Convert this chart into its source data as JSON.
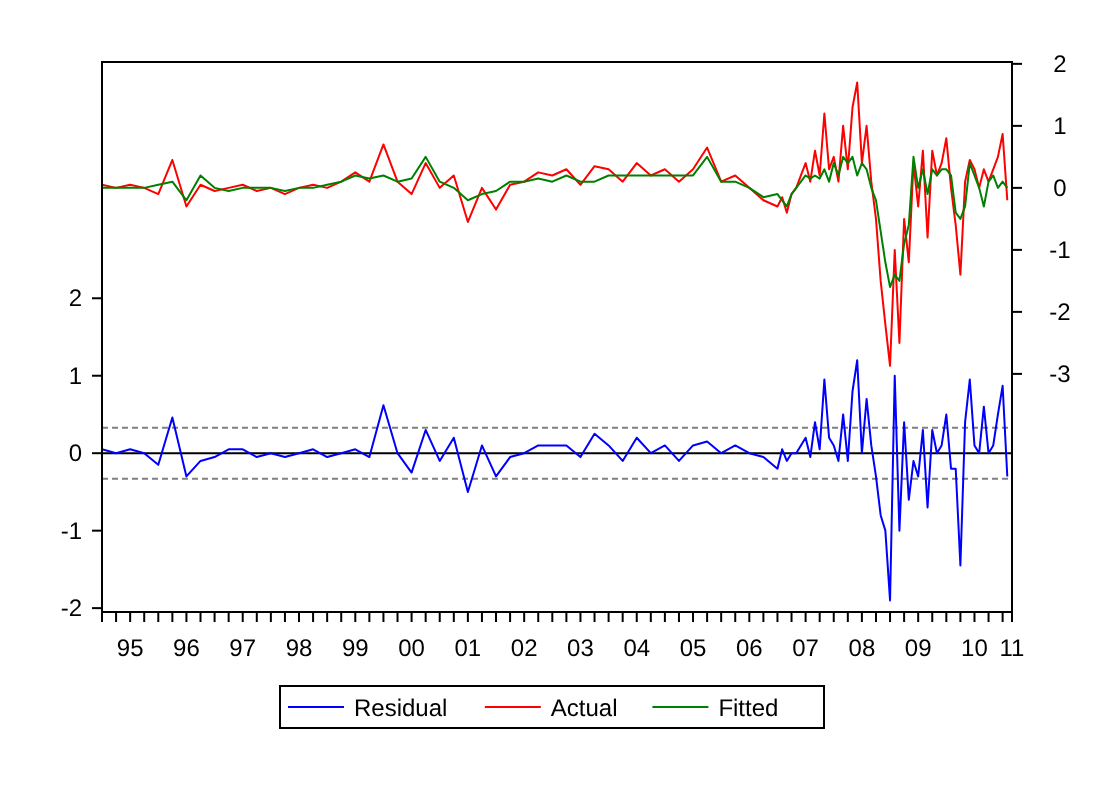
{
  "chart_data": {
    "type": "line",
    "legend": "bottom",
    "grid": false,
    "line_style": "solid",
    "xlim": [
      "1995-01",
      "2011-03"
    ],
    "xticks": [
      {
        "value": "1995-01",
        "label": null
      },
      {
        "value": "1995-04",
        "label": null
      },
      {
        "value": "1995-07",
        "label": "95"
      },
      {
        "value": "1995-10",
        "label": null
      },
      {
        "value": "1996-01",
        "label": null
      },
      {
        "value": "1996-04",
        "label": null
      },
      {
        "value": "1996-07",
        "label": "96"
      },
      {
        "value": "1996-10",
        "label": null
      },
      {
        "value": "1997-01",
        "label": null
      },
      {
        "value": "1997-04",
        "label": null
      },
      {
        "value": "1997-07",
        "label": "97"
      },
      {
        "value": "1997-10",
        "label": null
      },
      {
        "value": "1998-01",
        "label": null
      },
      {
        "value": "1998-04",
        "label": null
      },
      {
        "value": "1998-07",
        "label": "98"
      },
      {
        "value": "1998-10",
        "label": null
      },
      {
        "value": "1999-01",
        "label": null
      },
      {
        "value": "1999-04",
        "label": null
      },
      {
        "value": "1999-07",
        "label": "99"
      },
      {
        "value": "1999-10",
        "label": null
      },
      {
        "value": "2000-01",
        "label": null
      },
      {
        "value": "2000-04",
        "label": null
      },
      {
        "value": "2000-07",
        "label": "00"
      },
      {
        "value": "2000-10",
        "label": null
      },
      {
        "value": "2001-01",
        "label": null
      },
      {
        "value": "2001-04",
        "label": null
      },
      {
        "value": "2001-07",
        "label": "01"
      },
      {
        "value": "2001-10",
        "label": null
      },
      {
        "value": "2002-01",
        "label": null
      },
      {
        "value": "2002-04",
        "label": null
      },
      {
        "value": "2002-07",
        "label": "02"
      },
      {
        "value": "2002-10",
        "label": null
      },
      {
        "value": "2003-01",
        "label": null
      },
      {
        "value": "2003-04",
        "label": null
      },
      {
        "value": "2003-07",
        "label": "03"
      },
      {
        "value": "2003-10",
        "label": null
      },
      {
        "value": "2004-01",
        "label": null
      },
      {
        "value": "2004-04",
        "label": null
      },
      {
        "value": "2004-07",
        "label": "04"
      },
      {
        "value": "2004-10",
        "label": null
      },
      {
        "value": "2005-01",
        "label": null
      },
      {
        "value": "2005-04",
        "label": null
      },
      {
        "value": "2005-07",
        "label": "05"
      },
      {
        "value": "2005-10",
        "label": null
      },
      {
        "value": "2006-01",
        "label": null
      },
      {
        "value": "2006-04",
        "label": null
      },
      {
        "value": "2006-07",
        "label": "06"
      },
      {
        "value": "2006-10",
        "label": null
      },
      {
        "value": "2007-01",
        "label": null
      },
      {
        "value": "2007-04",
        "label": null
      },
      {
        "value": "2007-07",
        "label": "07"
      },
      {
        "value": "2007-10",
        "label": null
      },
      {
        "value": "2008-01",
        "label": null
      },
      {
        "value": "2008-04",
        "label": null
      },
      {
        "value": "2008-07",
        "label": "08"
      },
      {
        "value": "2008-10",
        "label": null
      },
      {
        "value": "2009-01",
        "label": null
      },
      {
        "value": "2009-04",
        "label": null
      },
      {
        "value": "2009-07",
        "label": "09"
      },
      {
        "value": "2009-10",
        "label": null
      },
      {
        "value": "2010-01",
        "label": null
      },
      {
        "value": "2010-04",
        "label": null
      },
      {
        "value": "2010-07",
        "label": "10"
      },
      {
        "value": "2010-10",
        "label": null
      },
      {
        "value": "2011-01",
        "label": null
      },
      {
        "value": "2011-03",
        "label": "11"
      }
    ],
    "ylim": [
      -2.05,
      5.05
    ],
    "yticks": [
      -2,
      -1,
      0,
      1,
      2
    ],
    "y2lim": [
      -6.84,
      2.03
    ],
    "y2ticks": [
      -3,
      -2,
      -1,
      0,
      1,
      2
    ],
    "x": [
      "1995-01",
      "1995-04",
      "1995-07",
      "1995-10",
      "1996-01",
      "1996-04",
      "1996-07",
      "1996-10",
      "1997-01",
      "1997-04",
      "1997-07",
      "1997-10",
      "1998-01",
      "1998-04",
      "1998-07",
      "1998-10",
      "1999-01",
      "1999-04",
      "1999-07",
      "1999-10",
      "2000-01",
      "2000-04",
      "2000-07",
      "2000-10",
      "2001-01",
      "2001-04",
      "2001-07",
      "2001-10",
      "2002-01",
      "2002-04",
      "2002-07",
      "2002-10",
      "2003-01",
      "2003-04",
      "2003-07",
      "2003-10",
      "2004-01",
      "2004-04",
      "2004-07",
      "2004-10",
      "2005-01",
      "2005-04",
      "2005-07",
      "2005-10",
      "2006-01",
      "2006-04",
      "2006-07",
      "2006-10",
      "2007-01",
      "2007-02",
      "2007-03",
      "2007-04",
      "2007-05",
      "2007-06",
      "2007-07",
      "2007-08",
      "2007-09",
      "2007-10",
      "2007-11",
      "2007-12",
      "2008-01",
      "2008-02",
      "2008-03",
      "2008-04",
      "2008-05",
      "2008-06",
      "2008-07",
      "2008-08",
      "2008-09",
      "2008-10",
      "2008-11",
      "2008-12",
      "2009-01",
      "2009-02",
      "2009-03",
      "2009-04",
      "2009-05",
      "2009-06",
      "2009-07",
      "2009-08",
      "2009-09",
      "2009-10",
      "2009-11",
      "2009-12",
      "2010-01",
      "2010-02",
      "2010-03",
      "2010-04",
      "2010-05",
      "2010-06",
      "2010-07",
      "2010-08",
      "2010-09",
      "2010-10",
      "2010-11",
      "2010-12",
      "2011-01",
      "2011-02"
    ],
    "ref_lines": [
      {
        "axis": "y",
        "value": 0,
        "color": "#000000",
        "line_style": "solid"
      },
      {
        "axis": "y",
        "value": 0.33,
        "color": "#808080",
        "line_style": "dashed"
      },
      {
        "axis": "y",
        "value": -0.33,
        "color": "#808080",
        "line_style": "dashed"
      }
    ],
    "series": [
      {
        "name": "Residual",
        "color": "#0000ff",
        "axis": "y",
        "values": [
          0.05,
          0,
          0.05,
          0,
          -0.15,
          0.46,
          -0.3,
          -0.1,
          -0.05,
          0.05,
          0.05,
          -0.05,
          0,
          -0.05,
          0,
          0.05,
          -0.05,
          0,
          0.05,
          -0.05,
          0.62,
          0,
          -0.25,
          0.3,
          -0.1,
          0.2,
          -0.5,
          0.1,
          -0.3,
          -0.05,
          0,
          0.1,
          0.1,
          0.1,
          -0.05,
          0.25,
          0.1,
          -0.1,
          0.2,
          0,
          0.1,
          -0.1,
          0.1,
          0.15,
          0,
          0.1,
          0,
          -0.05,
          -0.2,
          0.05,
          -0.1,
          0,
          0,
          0.1,
          0.2,
          -0.05,
          0.4,
          0.05,
          0.95,
          0.2,
          0.1,
          -0.1,
          0.5,
          -0.1,
          0.8,
          1.2,
          0,
          0.7,
          0.1,
          -0.3,
          -0.8,
          -1,
          -1.9,
          1,
          -1,
          0.4,
          -0.6,
          -0.1,
          -0.3,
          0.3,
          -0.7,
          0.3,
          0,
          0.1,
          0.5,
          -0.2,
          -0.2,
          -1.45,
          0.4,
          0.95,
          0.1,
          0,
          0.6,
          0,
          0.1,
          0.5,
          0.87,
          -0.3
        ]
      },
      {
        "name": "Actual",
        "color": "#ff0000",
        "axis": "y2",
        "values": [
          0.05,
          0,
          0.05,
          0,
          -0.1,
          0.45,
          -0.3,
          0.05,
          -0.05,
          0,
          0.05,
          -0.05,
          0,
          -0.1,
          0,
          0.05,
          0,
          0.1,
          0.25,
          0.1,
          0.7,
          0.1,
          -0.1,
          0.4,
          0,
          0.2,
          -0.55,
          0,
          -0.35,
          0.05,
          0.1,
          0.25,
          0.2,
          0.3,
          0.05,
          0.35,
          0.3,
          0.1,
          0.4,
          0.2,
          0.3,
          0.1,
          0.3,
          0.65,
          0.1,
          0.2,
          0,
          -0.2,
          -0.3,
          -0.15,
          -0.4,
          -0.1,
          0,
          0.2,
          0.4,
          0.1,
          0.6,
          0.2,
          1.2,
          0.3,
          0.5,
          0.1,
          1,
          0.3,
          1.3,
          1.7,
          0.4,
          1,
          0.1,
          -0.5,
          -1.5,
          -2.2,
          -2.87,
          -1,
          -2.5,
          -0.5,
          -1.2,
          0.4,
          -0.3,
          0.6,
          -0.8,
          0.6,
          0.2,
          0.4,
          0.8,
          0,
          -0.6,
          -1.4,
          0.1,
          0.45,
          0.3,
          0,
          0.3,
          0.1,
          0.3,
          0.5,
          0.87,
          -0.2
        ]
      },
      {
        "name": "Fitted",
        "color": "#008000",
        "axis": "y2",
        "values": [
          0,
          0,
          0,
          0,
          0.05,
          0.1,
          -0.2,
          0.2,
          0,
          -0.05,
          0,
          0,
          0,
          -0.05,
          0,
          0,
          0.05,
          0.1,
          0.2,
          0.15,
          0.2,
          0.1,
          0.15,
          0.5,
          0.1,
          0,
          -0.2,
          -0.1,
          -0.05,
          0.1,
          0.1,
          0.15,
          0.1,
          0.2,
          0.1,
          0.1,
          0.2,
          0.2,
          0.2,
          0.2,
          0.2,
          0.2,
          0.2,
          0.5,
          0.1,
          0.1,
          0,
          -0.15,
          -0.1,
          -0.2,
          -0.3,
          -0.1,
          0,
          0.1,
          0.2,
          0.15,
          0.2,
          0.15,
          0.3,
          0.1,
          0.4,
          0.2,
          0.5,
          0.4,
          0.5,
          0.2,
          0.4,
          0.3,
          0,
          -0.2,
          -0.7,
          -1.2,
          -1.6,
          -1.4,
          -1.5,
          -0.9,
          -0.6,
          0.5,
          0,
          0.3,
          -0.1,
          0.3,
          0.2,
          0.3,
          0.3,
          0.2,
          -0.4,
          -0.5,
          -0.3,
          0.4,
          0.2,
          0,
          -0.3,
          0.1,
          0.2,
          0,
          0.1,
          0
        ]
      }
    ]
  }
}
